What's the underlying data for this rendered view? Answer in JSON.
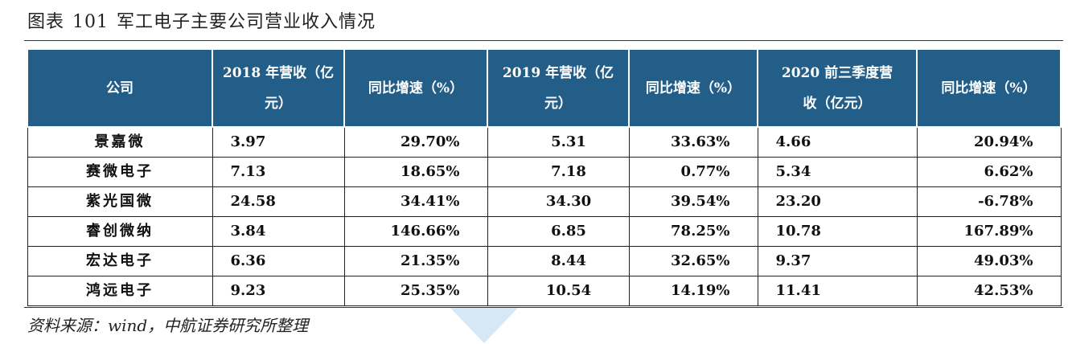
{
  "caption": {
    "prefix": "图表",
    "number": "101",
    "title": "军工电子主要公司营业收入情况"
  },
  "table": {
    "headers": [
      "公司",
      "2018 年营收（亿元）",
      "同比增速（%）",
      "2019 年营收（亿元）",
      "同比增速（%）",
      "2020 前三季度营收（亿元）",
      "同比增速（%）"
    ],
    "rows": [
      {
        "company": "景嘉微",
        "rev2018": "3.97",
        "yoy2018": "29.70%",
        "rev2019": "5.31",
        "yoy2019": "33.63%",
        "rev2020q3": "4.66",
        "yoy2020q3": "20.94%"
      },
      {
        "company": "赛微电子",
        "rev2018": "7.13",
        "yoy2018": "18.65%",
        "rev2019": "7.18",
        "yoy2019": "0.77%",
        "rev2020q3": "5.34",
        "yoy2020q3": "6.62%"
      },
      {
        "company": "紫光国微",
        "rev2018": "24.58",
        "yoy2018": "34.41%",
        "rev2019": "34.30",
        "yoy2019": "39.54%",
        "rev2020q3": "23.20",
        "yoy2020q3": "-6.78%"
      },
      {
        "company": "睿创微纳",
        "rev2018": "3.84",
        "yoy2018": "146.66%",
        "rev2019": "6.85",
        "yoy2019": "78.25%",
        "rev2020q3": "10.78",
        "yoy2020q3": "167.89%"
      },
      {
        "company": "宏达电子",
        "rev2018": "6.36",
        "yoy2018": "21.35%",
        "rev2019": "8.44",
        "yoy2019": "32.65%",
        "rev2020q3": "9.37",
        "yoy2020q3": "49.03%"
      },
      {
        "company": "鸿远电子",
        "rev2018": "9.23",
        "yoy2018": "25.35%",
        "rev2019": "10.54",
        "yoy2019": "14.19%",
        "rev2020q3": "11.41",
        "yoy2020q3": "42.53%"
      }
    ]
  },
  "source": {
    "text": "资料来源：wind",
    "suffix": "，中航证券研究所整理"
  },
  "colors": {
    "header_bg": "#225e88",
    "header_text": "#ffffff",
    "accent_wedge": "#d6e8f6"
  }
}
